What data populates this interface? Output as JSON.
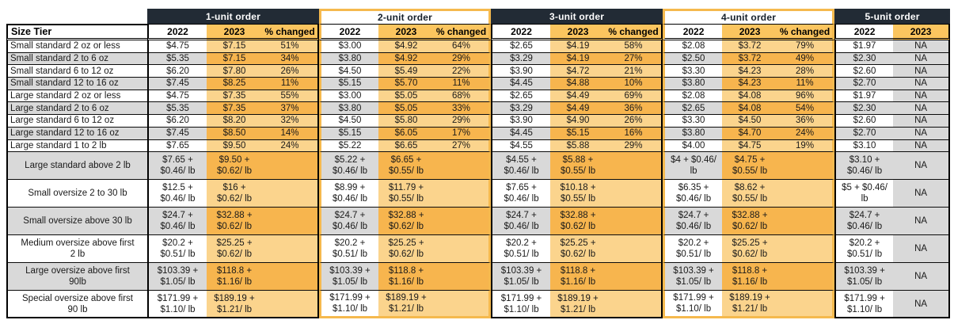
{
  "colors": {
    "group_header_bg": "#222B35",
    "group_header_text": "#FFFFFF",
    "highlight_outline": "#F5B94E",
    "subheader_orange": "#FBC55F",
    "row_orange_light": "#FBD48D",
    "row_orange_dark": "#F7B54E",
    "row_gray": "#D9D9D9",
    "text": "#1A1A1A"
  },
  "chart_data": {
    "type": "table",
    "row_header": "Size Tier",
    "na_label": "NA",
    "column_groups": [
      {
        "label": "1-unit order",
        "theme": "dark",
        "columns": [
          "2022",
          "2023",
          "% changed"
        ]
      },
      {
        "label": "2-unit order",
        "theme": "light",
        "columns": [
          "2022",
          "2023",
          "% changed"
        ]
      },
      {
        "label": "3-unit order",
        "theme": "dark",
        "columns": [
          "2022",
          "2023",
          "% changed"
        ]
      },
      {
        "label": "4-unit order",
        "theme": "light",
        "columns": [
          "2022",
          "2023",
          "% changed"
        ]
      },
      {
        "label": "5-unit order",
        "theme": "dark",
        "columns": [
          "2022",
          "2023"
        ]
      }
    ],
    "rows": [
      {
        "tier": "Small standard 2 oz or less",
        "tall": false,
        "values": [
          "$4.75",
          "$7.15",
          "51%",
          "$3.00",
          "$4.92",
          "64%",
          "$2.65",
          "$4.19",
          "58%",
          "$2.08",
          "$3.72",
          "79%",
          "$1.97",
          "NA"
        ]
      },
      {
        "tier": "Small standard 2 to 6 oz",
        "tall": false,
        "values": [
          "$5.35",
          "$7.15",
          "34%",
          "$3.80",
          "$4.92",
          "29%",
          "$3.29",
          "$4.19",
          "27%",
          "$2.50",
          "$3.72",
          "49%",
          "$2.30",
          "NA"
        ]
      },
      {
        "tier": "Small standard 6 to 12 oz",
        "tall": false,
        "values": [
          "$6.20",
          "$7.80",
          "26%",
          "$4.50",
          "$5.49",
          "22%",
          "$3.90",
          "$4.72",
          "21%",
          "$3.30",
          "$4.23",
          "28%",
          "$2.60",
          "NA"
        ]
      },
      {
        "tier": "Small standard 12 to 16 oz",
        "tall": false,
        "values": [
          "$7.45",
          "$8.25",
          "11%",
          "$5.15",
          "$5.70",
          "11%",
          "$4.45",
          "$4.88",
          "10%",
          "$3.80",
          "$4.23",
          "11%",
          "$2.70",
          "NA"
        ]
      },
      {
        "tier": "Large standard 2 oz or less",
        "tall": false,
        "values": [
          "$4.75",
          "$7.35",
          "55%",
          "$3.00",
          "$5.05",
          "68%",
          "$2.65",
          "$4.49",
          "69%",
          "$2.08",
          "$4.08",
          "96%",
          "$1.97",
          "NA"
        ]
      },
      {
        "tier": "Large standard 2 to 6 oz",
        "tall": false,
        "values": [
          "$5.35",
          "$7.35",
          "37%",
          "$3.80",
          "$5.05",
          "33%",
          "$3.29",
          "$4.49",
          "36%",
          "$2.65",
          "$4.08",
          "54%",
          "$2.30",
          "NA"
        ]
      },
      {
        "tier": "Large standard 6 to 12 oz",
        "tall": false,
        "values": [
          "$6.20",
          "$8.20",
          "32%",
          "$4.50",
          "$5.80",
          "29%",
          "$3.90",
          "$4.90",
          "26%",
          "$3.30",
          "$4.50",
          "36%",
          "$2.60",
          "NA"
        ]
      },
      {
        "tier": "Large standard 12 to 16 oz",
        "tall": false,
        "values": [
          "$7.45",
          "$8.50",
          "14%",
          "$5.15",
          "$6.05",
          "17%",
          "$4.45",
          "$5.15",
          "16%",
          "$3.80",
          "$4.70",
          "24%",
          "$2.70",
          "NA"
        ]
      },
      {
        "tier": "Large standard 1 to 2 lb",
        "tall": false,
        "values": [
          "$7.65",
          "$9.50",
          "24%",
          "$5.22",
          "$6.65",
          "27%",
          "$4.55",
          "$5.88",
          "29%",
          "$4.00",
          "$4.75",
          "19%",
          "$3.10",
          "NA"
        ]
      },
      {
        "tier": "Large standard above 2 lb",
        "tall": true,
        "values": [
          "$7.65 +\n$0.46/ lb",
          "$9.50 +\n$0.62/ lb",
          "",
          "$5.22 +\n$0.46/ lb",
          "$6.65 +\n$0.55/ lb",
          "",
          "$4.55 +\n$0.46/ lb",
          "$5.88 +\n$0.55/ lb",
          "",
          "$4 + $0.46/\nlb",
          "$4.75 +\n$0.55/ lb",
          "",
          "$3.10 +\n$0.46/ lb",
          "NA"
        ]
      },
      {
        "tier": "Small oversize 2 to 30 lb",
        "tall": true,
        "values": [
          "$12.5 +\n$0.46/ lb",
          "$16 +\n$0.62/ lb",
          "",
          "$8.99 +\n$0.46/ lb",
          "$11.79 +\n$0.55/ lb",
          "",
          "$7.65 +\n$0.46/ lb",
          "$10.18 +\n$0.55/ lb",
          "",
          "$6.35 +\n$0.46/ lb",
          "$8.62 +\n$0.55/ lb",
          "",
          "$5 + $0.46/\nlb",
          "NA"
        ]
      },
      {
        "tier": "Small oversize above 30 lb",
        "tall": true,
        "values": [
          "$24.7 +\n$0.46/ lb",
          "$32.88 +\n$0.62/ lb",
          "",
          "$24.7 +\n$0.46/ lb",
          "$32.88 +\n$0.62/ lb",
          "",
          "$24.7 +\n$0.46/ lb",
          "$32.88 +\n$0.62/ lb",
          "",
          "$24.7 +\n$0.46/ lb",
          "$32.88 +\n$0.62/ lb",
          "",
          "$24.7 +\n$0.46/ lb",
          "NA"
        ]
      },
      {
        "tier": "Medium oversize above first\n2 lb",
        "tall": true,
        "values": [
          "$20.2 +\n$0.51/ lb",
          "$25.25 +\n$0.62/ lb",
          "",
          "$20.2 +\n$0.51/ lb",
          "$25.25 +\n$0.62/ lb",
          "",
          "$20.2 +\n$0.51/ lb",
          "$25.25 +\n$0.62/ lb",
          "",
          "$20.2 +\n$0.51/ lb",
          "$25.25 +\n$0.62/ lb",
          "",
          "$20.2 +\n$0.51/ lb",
          "NA"
        ]
      },
      {
        "tier": "Large oversize above first\n90lb",
        "tall": true,
        "values": [
          "$103.39 +\n$1.05/ lb",
          "$118.8 +\n$1.16/ lb",
          "",
          "$103.39 +\n$1.05/ lb",
          "$118.8 +\n$1.16/ lb",
          "",
          "$103.39 +\n$1.05/ lb",
          "$118.8 +\n$1.16/ lb",
          "",
          "$103.39 +\n$1.05/ lb",
          "$118.8 +\n$1.16/ lb",
          "",
          "$103.39 +\n$1.05/ lb",
          "NA"
        ]
      },
      {
        "tier": "Special oversize above first\n90 lb",
        "tall": true,
        "values": [
          "$171.99 +\n$1.10/ lb",
          "$189.19 +\n$1.21/ lb",
          "",
          "$171.99 +\n$1.10/ lb",
          "$189.19 +\n$1.21/ lb",
          "",
          "$171.99 +\n$1.10/ lb",
          "$189.19 +\n$1.21/ lb",
          "",
          "$171.99 +\n$1.10/ lb",
          "$189.19 +\n$1.21/ lb",
          "",
          "$171.99 +\n$1.10/ lb",
          "NA"
        ]
      }
    ]
  }
}
